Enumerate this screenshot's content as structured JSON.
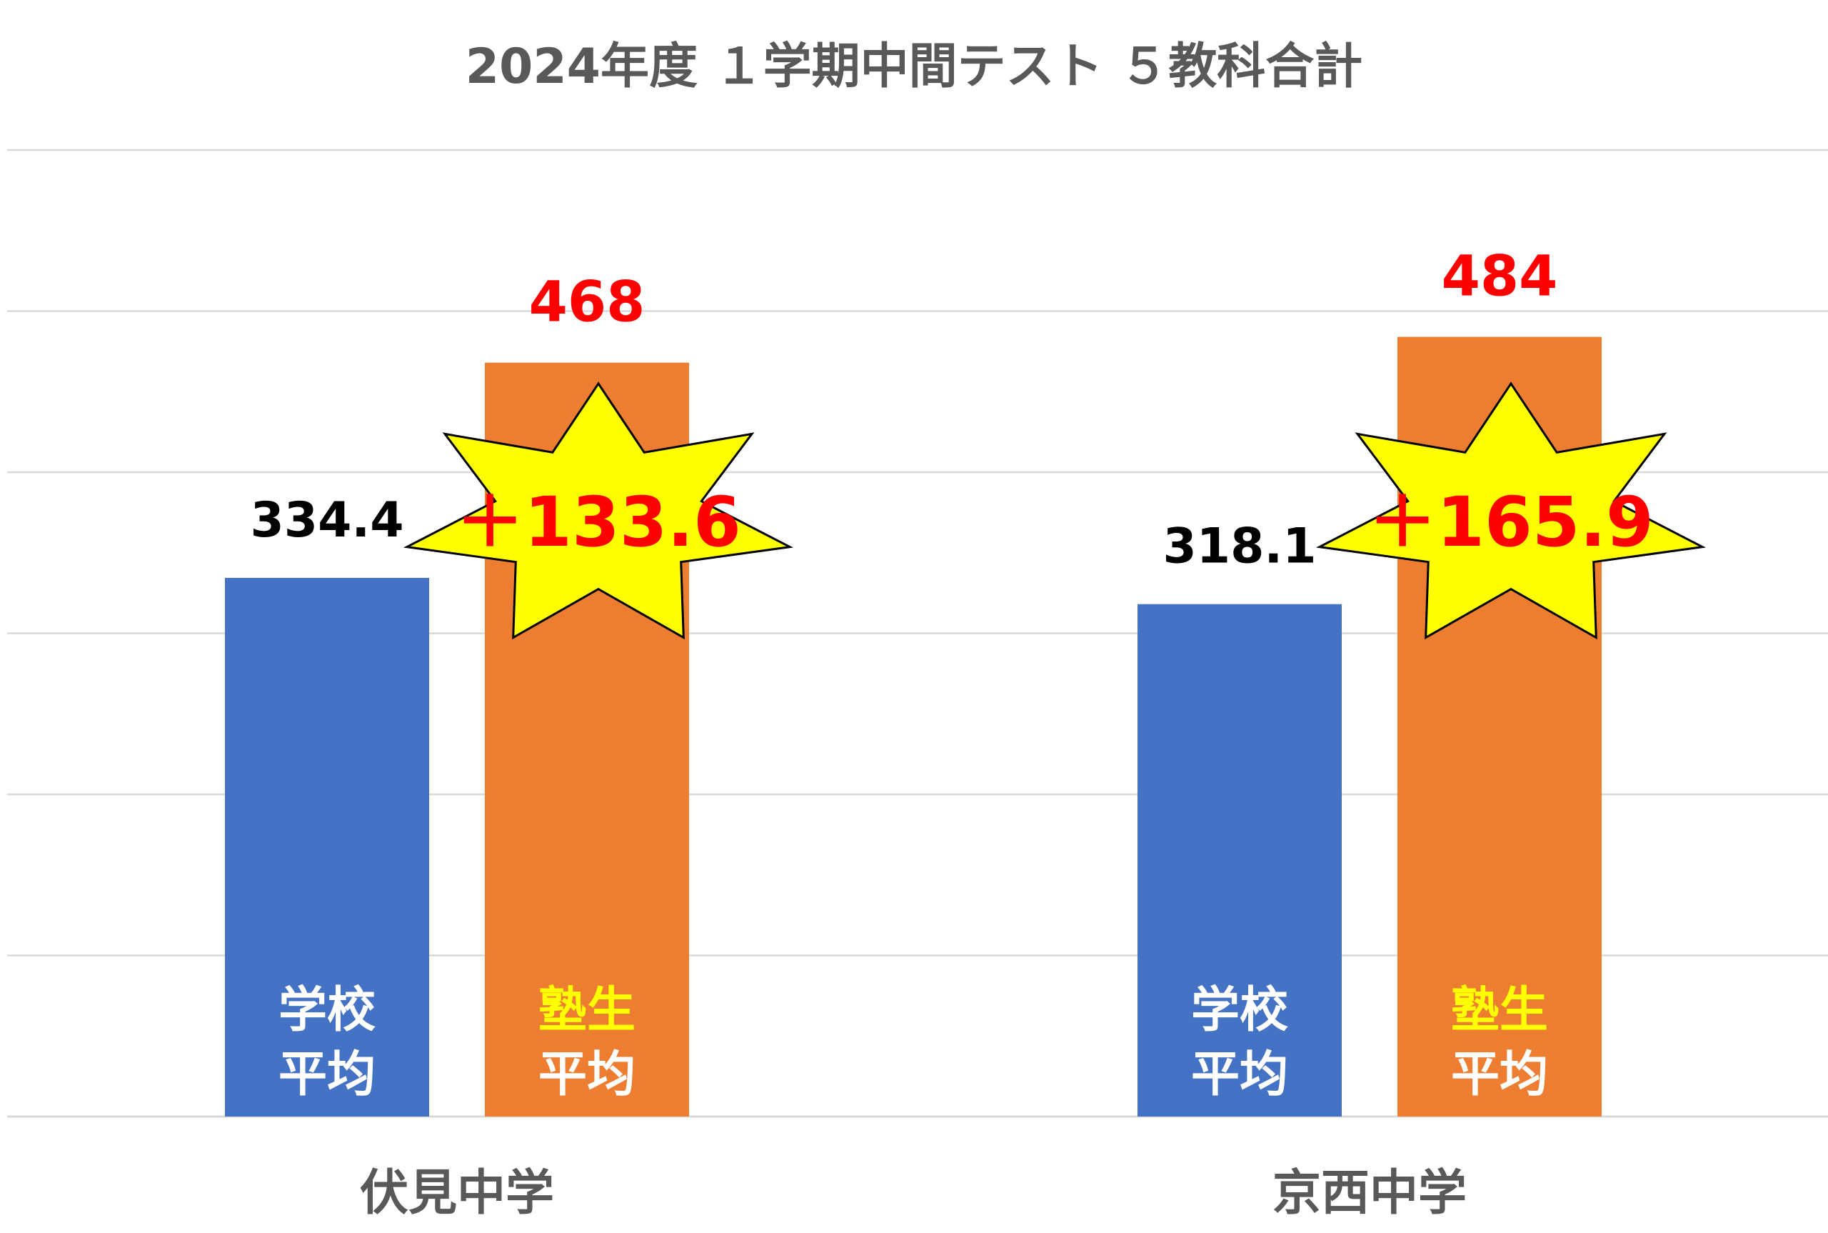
{
  "chart_data": {
    "type": "bar",
    "title": "2024年度 １学期中間テスト ５教科合計",
    "categories": [
      "伏見中学",
      "京西中学"
    ],
    "series": [
      {
        "labels": [
          "学校",
          "平均"
        ],
        "values": [
          334.4,
          318.1
        ],
        "value_labels": [
          "334.4",
          "318.1"
        ],
        "color": "#4472C4",
        "value_label_color": "#000000",
        "inbar_label_color": "#FFFFFF"
      },
      {
        "labels": [
          "塾生",
          "平均"
        ],
        "values": [
          468,
          484
        ],
        "value_labels": [
          "468",
          "484"
        ],
        "color": "#ED7D31",
        "value_label_color": "#FF0000",
        "inbar_label_colors": [
          "#FFFF00",
          "#FFFFFF"
        ]
      }
    ],
    "ylim": [
      0,
      600
    ],
    "grid": true,
    "differences": [
      "＋133.6",
      "＋165.9"
    ],
    "difference_badge": {
      "fill": "#FFFF00",
      "stroke": "#000000",
      "text_color": "#FF0000"
    },
    "gridline_color": "#D9D9D9",
    "axis_color": "#D9D9D9"
  }
}
